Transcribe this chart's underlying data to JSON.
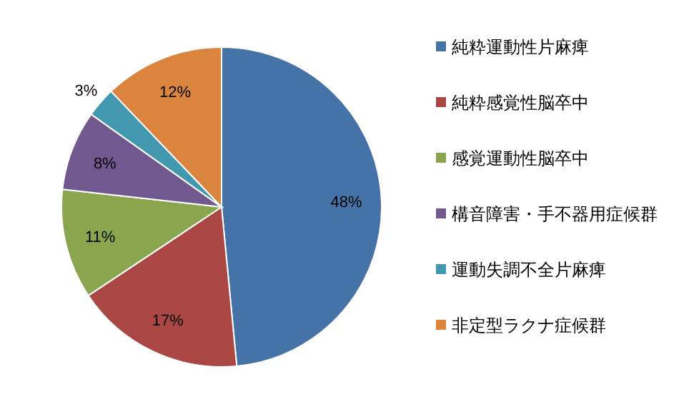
{
  "chart_data": {
    "type": "pie",
    "categories": [
      "純粋運動性片麻痺",
      "純粋感覚性脳卒中",
      "感覚運動性脳卒中",
      "構音障害・手不器用症候群",
      "運動失調不全片麻痺",
      "非定型ラクナ症候群"
    ],
    "values": [
      48,
      17,
      11,
      8,
      3,
      12
    ],
    "colors": [
      "#4572a7",
      "#aa4643",
      "#89a54e",
      "#71588f",
      "#4198af",
      "#db843d"
    ],
    "value_labels": [
      "48%",
      "17%",
      "11%",
      "8%",
      "3%",
      "12%"
    ],
    "legend": "right"
  }
}
